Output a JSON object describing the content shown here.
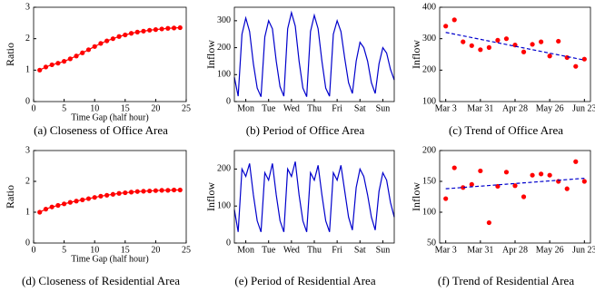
{
  "chart_data": [
    {
      "type": "line",
      "caption": "(a) Closeness of Office Area",
      "ylabel": "Ratio",
      "xlabel": "Time Gap (half hour)",
      "x": [
        1,
        2,
        3,
        4,
        5,
        6,
        7,
        8,
        9,
        10,
        11,
        12,
        13,
        14,
        15,
        16,
        17,
        18,
        19,
        20,
        21,
        22,
        23,
        24
      ],
      "series": [
        {
          "color": "#ff0000",
          "line": "solid",
          "marker": "circle",
          "values": [
            1.0,
            1.1,
            1.17,
            1.22,
            1.28,
            1.36,
            1.45,
            1.55,
            1.65,
            1.75,
            1.85,
            1.93,
            2.0,
            2.07,
            2.12,
            2.17,
            2.21,
            2.24,
            2.27,
            2.29,
            2.31,
            2.33,
            2.34,
            2.35
          ]
        }
      ],
      "xlim": [
        0,
        25
      ],
      "xticks": [
        0,
        5,
        10,
        15,
        20,
        25
      ],
      "ylim": [
        0,
        3
      ],
      "yticks": [
        0,
        1,
        2,
        3
      ]
    },
    {
      "type": "line",
      "caption": "(b) Period of Office Area",
      "ylabel": "Inflow",
      "x": [
        0,
        4,
        8,
        12,
        16,
        20,
        24,
        28,
        32,
        36,
        40,
        44,
        48,
        52,
        56,
        60,
        64,
        68,
        72,
        76,
        80,
        84,
        88,
        92,
        96,
        100,
        104,
        108,
        112,
        116,
        120,
        124,
        128,
        132,
        136,
        140,
        144,
        148,
        152,
        156,
        160,
        164,
        168
      ],
      "series": [
        {
          "color": "#0000cc",
          "line": "solid",
          "marker": "none",
          "values": [
            90,
            20,
            250,
            310,
            260,
            140,
            50,
            18,
            240,
            300,
            270,
            150,
            55,
            20,
            270,
            330,
            280,
            150,
            50,
            18,
            260,
            320,
            270,
            150,
            50,
            20,
            250,
            300,
            260,
            160,
            70,
            30,
            150,
            220,
            200,
            150,
            70,
            30,
            140,
            200,
            180,
            120,
            80
          ]
        }
      ],
      "xlim": [
        0,
        168
      ],
      "xticks": [
        {
          "value": 12,
          "label": "Mon"
        },
        {
          "value": 36,
          "label": "Tue"
        },
        {
          "value": 60,
          "label": "Wed"
        },
        {
          "value": 84,
          "label": "Thu"
        },
        {
          "value": 108,
          "label": "Fri"
        },
        {
          "value": 132,
          "label": "Sat"
        },
        {
          "value": 156,
          "label": "Sun"
        }
      ],
      "ylim": [
        0,
        350
      ],
      "yticks": [
        0,
        100,
        200,
        300
      ]
    },
    {
      "type": "scatter",
      "caption": "(c) Trend of Office Area",
      "ylabel": "Inflow",
      "categories": [
        "Mar 3",
        null,
        null,
        null,
        "Mar 31",
        null,
        null,
        null,
        "Apr 28",
        null,
        null,
        null,
        "May 26",
        null,
        null,
        null,
        "Jun 23"
      ],
      "series": [
        {
          "color": "#ff0000",
          "line": "none",
          "marker": "circle",
          "values": [
            340,
            360,
            290,
            278,
            265,
            272,
            295,
            300,
            280,
            258,
            282,
            290,
            245,
            292,
            240,
            212,
            235
          ]
        },
        {
          "color": "#0000cc",
          "line": "dashed",
          "marker": "none",
          "values": [
            320,
            314.5,
            309,
            303.5,
            298,
            292.5,
            287,
            281.5,
            276,
            270.5,
            265,
            259.5,
            254,
            248.5,
            243,
            237.5,
            232
          ]
        }
      ],
      "ylim": [
        100,
        400
      ],
      "yticks": [
        100,
        200,
        300,
        400
      ]
    },
    {
      "type": "line",
      "caption": "(d) Closeness of Residential Area",
      "ylabel": "Ratio",
      "xlabel": "Time Gap (half hour)",
      "x": [
        1,
        2,
        3,
        4,
        5,
        6,
        7,
        8,
        9,
        10,
        11,
        12,
        13,
        14,
        15,
        16,
        17,
        18,
        19,
        20,
        21,
        22,
        23,
        24
      ],
      "series": [
        {
          "color": "#ff0000",
          "line": "solid",
          "marker": "circle",
          "values": [
            1.0,
            1.1,
            1.17,
            1.22,
            1.27,
            1.32,
            1.36,
            1.4,
            1.44,
            1.48,
            1.52,
            1.55,
            1.58,
            1.61,
            1.63,
            1.65,
            1.67,
            1.68,
            1.69,
            1.7,
            1.71,
            1.71,
            1.72,
            1.72
          ]
        }
      ],
      "xlim": [
        0,
        25
      ],
      "xticks": [
        0,
        5,
        10,
        15,
        20,
        25
      ],
      "ylim": [
        0,
        3
      ],
      "yticks": [
        0,
        1,
        2,
        3
      ]
    },
    {
      "type": "line",
      "caption": "(e) Period of Residential Area",
      "ylabel": "Inflow",
      "x": [
        0,
        4,
        8,
        12,
        16,
        20,
        24,
        28,
        32,
        36,
        40,
        44,
        48,
        52,
        56,
        60,
        64,
        68,
        72,
        76,
        80,
        84,
        88,
        92,
        96,
        100,
        104,
        108,
        112,
        116,
        120,
        124,
        128,
        132,
        136,
        140,
        144,
        148,
        152,
        156,
        160,
        164,
        168
      ],
      "series": [
        {
          "color": "#0000cc",
          "line": "solid",
          "marker": "none",
          "values": [
            90,
            30,
            200,
            180,
            215,
            130,
            60,
            30,
            190,
            170,
            215,
            130,
            60,
            30,
            200,
            180,
            220,
            130,
            60,
            30,
            190,
            170,
            210,
            130,
            60,
            30,
            190,
            170,
            210,
            140,
            70,
            35,
            150,
            200,
            180,
            130,
            70,
            35,
            140,
            190,
            170,
            110,
            70
          ]
        }
      ],
      "xlim": [
        0,
        168
      ],
      "xticks": [
        {
          "value": 12,
          "label": "Mon"
        },
        {
          "value": 36,
          "label": "Tue"
        },
        {
          "value": 60,
          "label": "Wed"
        },
        {
          "value": 84,
          "label": "Thu"
        },
        {
          "value": 108,
          "label": "Fri"
        },
        {
          "value": 132,
          "label": "Sat"
        },
        {
          "value": 156,
          "label": "Sun"
        }
      ],
      "ylim": [
        0,
        250
      ],
      "yticks": [
        0,
        100,
        200
      ]
    },
    {
      "type": "scatter",
      "caption": "(f) Trend of Residential Area",
      "ylabel": "Inflow",
      "categories": [
        "Mar 3",
        null,
        null,
        null,
        "Mar 31",
        null,
        null,
        null,
        "Apr 28",
        null,
        null,
        null,
        "May 26",
        null,
        null,
        null,
        "Jun 23"
      ],
      "series": [
        {
          "color": "#ff0000",
          "line": "none",
          "marker": "circle",
          "values": [
            122,
            172,
            140,
            145,
            167,
            83,
            142,
            165,
            143,
            125,
            160,
            162,
            160,
            150,
            138,
            182,
            150
          ]
        },
        {
          "color": "#0000cc",
          "line": "dashed",
          "marker": "none",
          "values": [
            138,
            139.06,
            140.13,
            141.19,
            142.25,
            143.31,
            144.38,
            145.44,
            146.5,
            147.56,
            148.63,
            149.69,
            150.75,
            151.81,
            152.88,
            153.94,
            155
          ]
        }
      ],
      "ylim": [
        50,
        200
      ],
      "yticks": [
        50,
        100,
        150,
        200
      ]
    }
  ]
}
